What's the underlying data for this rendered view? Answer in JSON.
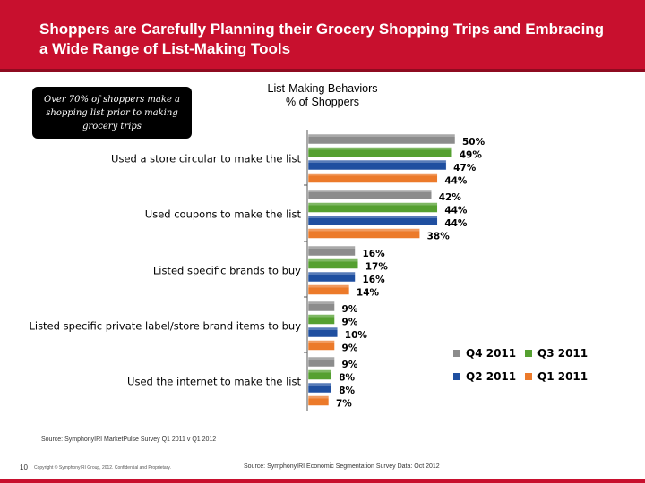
{
  "header": {
    "title": "Shoppers are Carefully Planning their Grocery Shopping Trips and Embracing a Wide Range of List-Making Tools"
  },
  "callout": {
    "text": "Over 70% of shoppers make a shopping list prior to making grocery trips"
  },
  "colors": {
    "header_bg": "#c8102e",
    "q4": "#8c8c8c",
    "q3": "#55a030",
    "q2": "#1f4fa0",
    "q1": "#ec7a2a"
  },
  "chart_data": {
    "type": "bar",
    "orientation": "horizontal",
    "title": "List-Making Behaviors",
    "subtitle": "% of Shoppers",
    "categories": [
      "Used a store circular to make the list",
      "Used coupons to make the list",
      "Listed specific brands to buy",
      "Listed specific private label/store brand items to buy",
      "Used the internet to make the list"
    ],
    "series": [
      {
        "name": "Q4 2011",
        "color": "#8c8c8c",
        "values": [
          50,
          42,
          16,
          9,
          9
        ]
      },
      {
        "name": "Q3 2011",
        "color": "#55a030",
        "values": [
          49,
          44,
          17,
          9,
          8
        ]
      },
      {
        "name": "Q2 2011",
        "color": "#1f4fa0",
        "values": [
          47,
          44,
          16,
          10,
          8
        ]
      },
      {
        "name": "Q1 2011",
        "color": "#ec7a2a",
        "values": [
          44,
          38,
          14,
          9,
          7
        ]
      }
    ],
    "value_suffix": "%",
    "xlim": [
      0,
      60
    ],
    "grid": false,
    "legend_position": "bottom-right"
  },
  "footer": {
    "source": "Source:  SymphonyIRI MarketPulse Survey Q1 2011 v Q1 2012",
    "page_number": "10",
    "copyright": "Copyright © SymphonyIRI Group, 2012. Confidential and Proprietary.",
    "source2": "Source:  SymphonyIRI Economic Segmentation Survey Data: Oct 2012"
  }
}
